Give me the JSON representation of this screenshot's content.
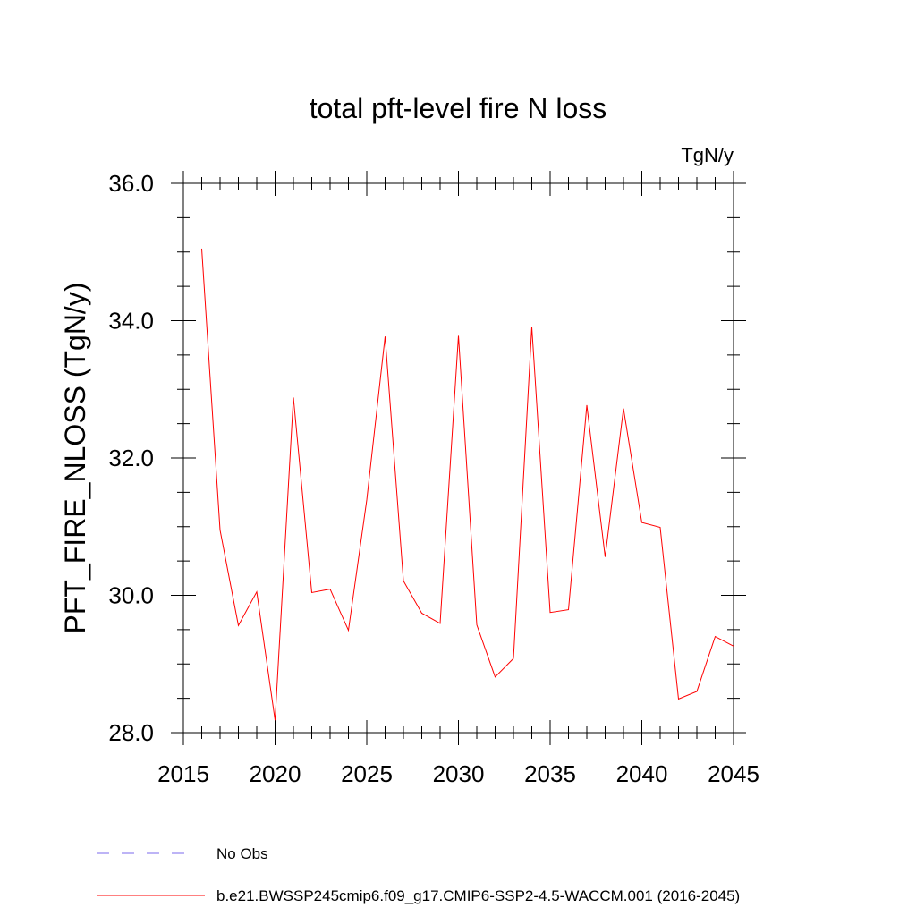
{
  "chart_data": {
    "type": "line",
    "title": "total pft-level fire N loss",
    "units": "TgN/y",
    "ylabel": "PFT_FIRE_NLOSS  (TgN/y)",
    "xlabel": "",
    "xlim": [
      2015,
      2045
    ],
    "ylim": [
      28.0,
      36.0
    ],
    "x_ticks": [
      2015,
      2020,
      2025,
      2030,
      2035,
      2040,
      2045
    ],
    "x_tick_labels": [
      "2015",
      "2020",
      "2025",
      "2030",
      "2035",
      "2040",
      "2045"
    ],
    "y_ticks": [
      28.0,
      30.0,
      32.0,
      34.0,
      36.0
    ],
    "y_tick_labels": [
      "28.0",
      "30.0",
      "32.0",
      "34.0",
      "36.0"
    ],
    "y_minor_step": 0.5,
    "x_minor_step": 1,
    "grid": false,
    "legend_position": "bottom",
    "series": [
      {
        "name": "b.e21.BWSSP245cmip6.f09_g17.CMIP6-SSP2-4.5-WACCM.001 (2016-2045)",
        "color": "#ff0000",
        "style": "solid",
        "x": [
          2016,
          2017,
          2018,
          2019,
          2020,
          2021,
          2022,
          2023,
          2024,
          2025,
          2026,
          2027,
          2028,
          2029,
          2030,
          2031,
          2032,
          2033,
          2034,
          2035,
          2036,
          2037,
          2038,
          2039,
          2040,
          2041,
          2042,
          2043,
          2044,
          2045
        ],
        "values": [
          35.05,
          30.95,
          29.56,
          30.05,
          28.18,
          32.88,
          30.04,
          30.09,
          29.49,
          31.39,
          33.77,
          30.21,
          29.74,
          29.59,
          33.78,
          29.57,
          28.81,
          29.08,
          33.91,
          29.75,
          29.79,
          32.77,
          30.56,
          32.72,
          31.06,
          30.99,
          28.49,
          28.6,
          29.4,
          29.26
        ]
      }
    ]
  },
  "legend": [
    {
      "label": "No Obs",
      "color": "#7b68ee",
      "style": "dashed"
    },
    {
      "label": "b.e21.BWSSP245cmip6.f09_g17.CMIP6-SSP2-4.5-WACCM.001 (2016-2045)",
      "color": "#ff0000",
      "style": "solid"
    }
  ]
}
